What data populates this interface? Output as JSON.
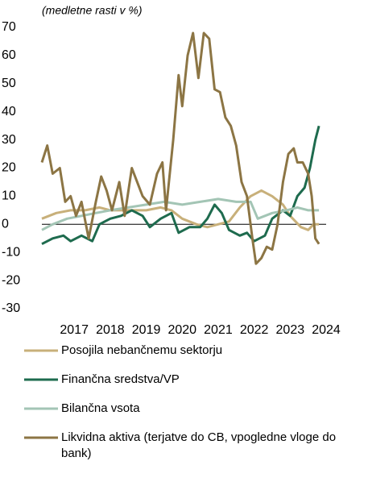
{
  "chart_data": {
    "type": "line",
    "subtitle": "(medletne rasti v %)",
    "xlim": [
      2016.1,
      2024.0
    ],
    "xticks": [
      2017,
      2018,
      2019,
      2020,
      2021,
      2022,
      2023,
      2024
    ],
    "ylim": [
      -30,
      70
    ],
    "yticks": [
      -30,
      -20,
      -10,
      0,
      10,
      20,
      30,
      40,
      50,
      60,
      70
    ],
    "series": [
      {
        "name": "Posojila nebančnemu sektorju",
        "color": "#c8b07a",
        "x": [
          2016.1,
          2016.5,
          2016.9,
          2017.3,
          2017.7,
          2018.0,
          2018.5,
          2019.0,
          2019.4,
          2019.7,
          2020.0,
          2020.4,
          2020.7,
          2021.0,
          2021.3,
          2021.6,
          2021.9,
          2022.2,
          2022.5,
          2022.8,
          2023.0,
          2023.3,
          2023.5,
          2023.65,
          2023.8
        ],
        "values": [
          2,
          4,
          5,
          5,
          6,
          5,
          5,
          5,
          6,
          5,
          2,
          0,
          -1,
          0,
          1,
          6,
          10,
          12,
          10,
          7,
          3,
          -1,
          -2,
          0,
          0
        ]
      },
      {
        "name": "Finančna sredstva/VP",
        "color": "#1e6b4e",
        "x": [
          2016.1,
          2016.4,
          2016.7,
          2016.9,
          2017.2,
          2017.5,
          2017.7,
          2018.0,
          2018.3,
          2018.6,
          2018.9,
          2019.1,
          2019.4,
          2019.7,
          2019.9,
          2020.2,
          2020.5,
          2020.7,
          2020.9,
          2021.1,
          2021.3,
          2021.6,
          2021.8,
          2022.0,
          2022.3,
          2022.5,
          2022.8,
          2023.0,
          2023.2,
          2023.4,
          2023.55,
          2023.7,
          2023.8
        ],
        "values": [
          -7,
          -5,
          -4,
          -6,
          -4,
          -6,
          0,
          2,
          3,
          5,
          3,
          -1,
          2,
          4,
          -3,
          -1,
          -1,
          2,
          7,
          4,
          -2,
          -4,
          -3,
          -6,
          -4,
          2,
          5,
          3,
          10,
          13,
          20,
          30,
          35
        ]
      },
      {
        "name": "Bilančna vsota",
        "color": "#a3c5b5",
        "x": [
          2016.1,
          2016.4,
          2016.8,
          2017.2,
          2017.6,
          2018.0,
          2018.5,
          2019.0,
          2019.5,
          2020.0,
          2020.5,
          2021.0,
          2021.5,
          2021.9,
          2022.1,
          2022.5,
          2022.9,
          2023.2,
          2023.5,
          2023.8
        ],
        "values": [
          -2,
          0,
          2,
          3,
          4,
          5,
          6,
          7,
          8,
          7,
          8,
          9,
          8,
          8,
          2,
          4,
          5,
          6,
          5,
          5
        ]
      },
      {
        "name": "Likvidna aktiva (terjatve do CB, vpogledne vloge do bank)",
        "color": "#8c7544",
        "x": [
          2016.1,
          2016.25,
          2016.4,
          2016.6,
          2016.75,
          2016.9,
          2017.05,
          2017.2,
          2017.4,
          2017.6,
          2017.75,
          2017.9,
          2018.05,
          2018.25,
          2018.4,
          2018.6,
          2018.75,
          2018.9,
          2019.1,
          2019.3,
          2019.45,
          2019.55,
          2019.75,
          2019.9,
          2020.0,
          2020.15,
          2020.3,
          2020.45,
          2020.6,
          2020.75,
          2020.9,
          2021.05,
          2021.2,
          2021.35,
          2021.5,
          2021.65,
          2021.8,
          2021.95,
          2022.05,
          2022.2,
          2022.35,
          2022.5,
          2022.65,
          2022.8,
          2022.95,
          2023.1,
          2023.2,
          2023.35,
          2023.5,
          2023.6,
          2023.7,
          2023.8
        ],
        "values": [
          22,
          28,
          18,
          20,
          8,
          10,
          3,
          8,
          -5,
          8,
          17,
          12,
          5,
          15,
          3,
          20,
          15,
          10,
          7,
          18,
          22,
          5,
          30,
          53,
          42,
          60,
          68,
          52,
          68,
          66,
          48,
          47,
          38,
          35,
          28,
          15,
          10,
          -5,
          -14,
          -12,
          -8,
          -9,
          0,
          15,
          25,
          27,
          22,
          22,
          18,
          10,
          -5,
          -7
        ]
      }
    ]
  }
}
